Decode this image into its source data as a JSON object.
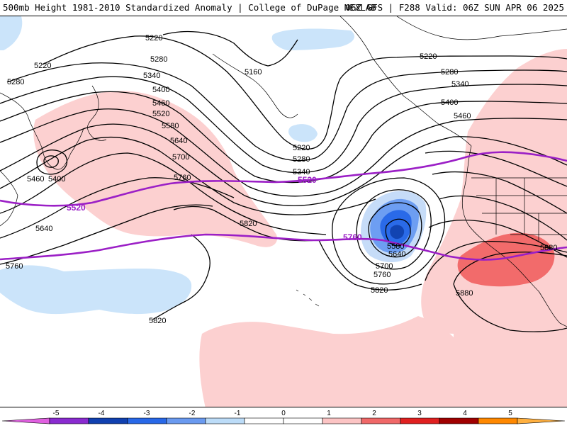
{
  "header": {
    "title_left": "500mb Height 1981-2010 Standardized Anomaly | College of DuPage NEXLAB",
    "title_right": "06Z GFS | F288 Valid: 06Z SUN APR 06 2025"
  },
  "contour_labels": [
    "5220",
    "5280",
    "5340",
    "5400",
    "5460",
    "5520",
    "5580",
    "5640",
    "5700",
    "5760",
    "5820",
    "5880",
    "5160"
  ],
  "highlight_labels": [
    "5520",
    "5760"
  ],
  "colorbar": {
    "ticks": [
      "-5",
      "-4",
      "-3",
      "-2",
      "-1",
      "0",
      "1",
      "2",
      "3",
      "4",
      "5"
    ],
    "colors": [
      "#e060e0",
      "#8a2bd0",
      "#1040b0",
      "#2868e8",
      "#6a9af0",
      "#bcdcf8",
      "#ffffff",
      "#ffffff",
      "#fcc4c4",
      "#f06868",
      "#e02020",
      "#a00000",
      "#ff8800",
      "#ffb040"
    ]
  }
}
